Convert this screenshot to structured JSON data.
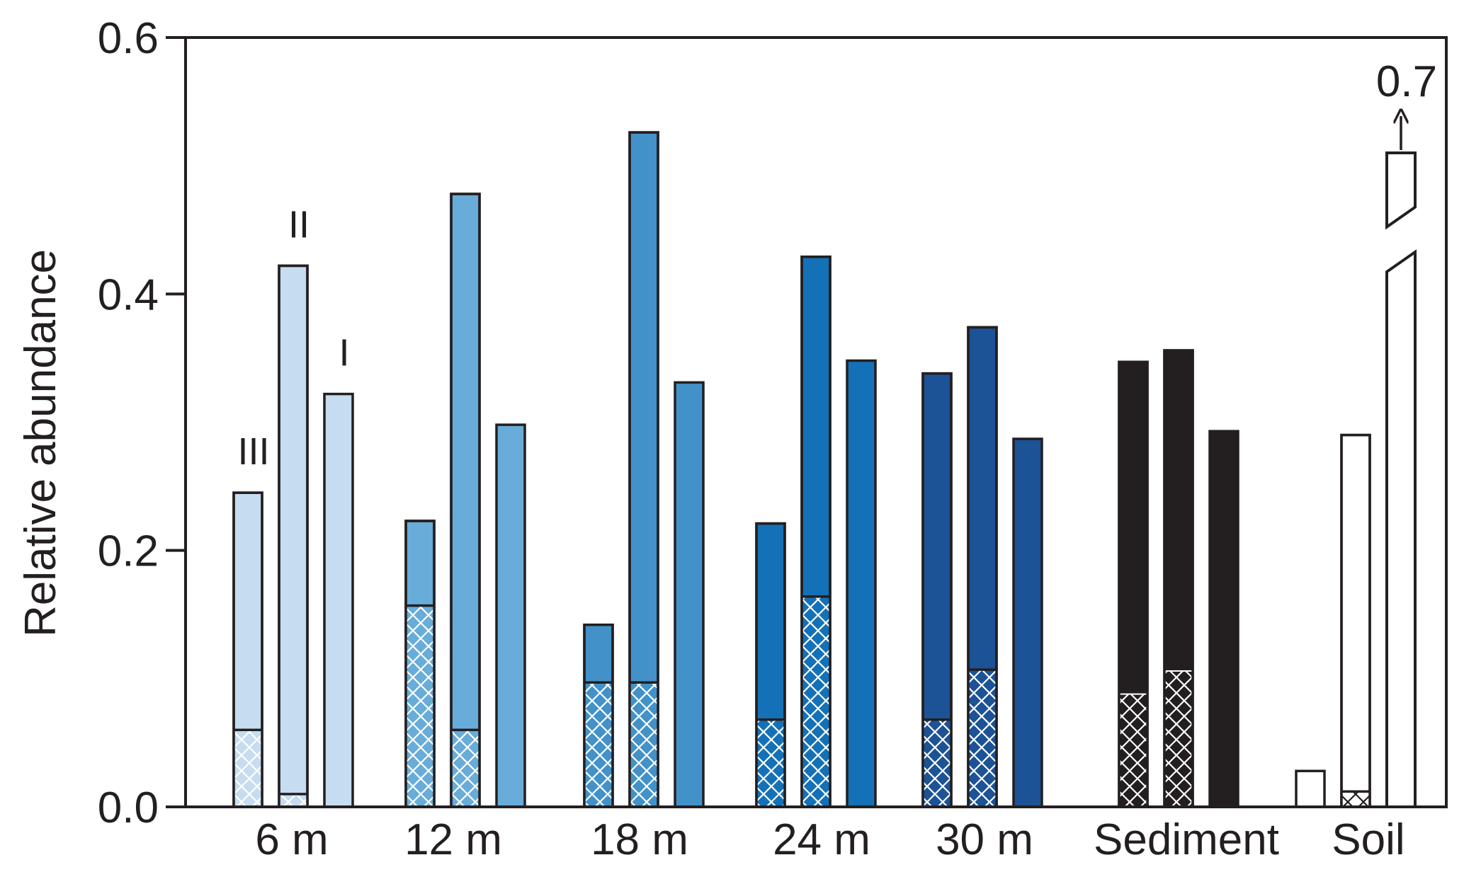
{
  "chart_data": {
    "type": "bar",
    "ylabel": "Relative abundance",
    "xlabel": "",
    "title": "",
    "ylim": [
      0,
      0.6
    ],
    "yticks": [
      {
        "value": 0.0,
        "label": "0.0"
      },
      {
        "value": 0.2,
        "label": "0.2"
      },
      {
        "value": 0.4,
        "label": "0.4"
      },
      {
        "value": 0.6,
        "label": "0.6"
      }
    ],
    "grid": false,
    "legend": "none",
    "bar_labels": [
      "III",
      "II",
      "I"
    ],
    "overflow_label": "0.7",
    "groups": [
      {
        "label": "6 m",
        "color": "#c6dcf0",
        "bars": [
          {
            "total": 0.245,
            "hatched": 0.06
          },
          {
            "total": 0.422,
            "hatched": 0.01
          },
          {
            "total": 0.322,
            "hatched": 0.0
          }
        ]
      },
      {
        "label": "12 m",
        "color": "#68acd9",
        "bars": [
          {
            "total": 0.223,
            "hatched": 0.157
          },
          {
            "total": 0.478,
            "hatched": 0.06
          },
          {
            "total": 0.298,
            "hatched": 0.0
          }
        ]
      },
      {
        "label": "18 m",
        "color": "#4292c9",
        "bars": [
          {
            "total": 0.142,
            "hatched": 0.097
          },
          {
            "total": 0.526,
            "hatched": 0.097
          },
          {
            "total": 0.331,
            "hatched": 0.0
          }
        ]
      },
      {
        "label": "24 m",
        "color": "#1571b7",
        "bars": [
          {
            "total": 0.221,
            "hatched": 0.068
          },
          {
            "total": 0.429,
            "hatched": 0.164
          },
          {
            "total": 0.348,
            "hatched": 0.0
          }
        ]
      },
      {
        "label": "30 m",
        "color": "#1c5296",
        "bars": [
          {
            "total": 0.338,
            "hatched": 0.068
          },
          {
            "total": 0.374,
            "hatched": 0.107
          },
          {
            "total": 0.287,
            "hatched": 0.0
          }
        ]
      },
      {
        "label": "Sediment",
        "color": "#231f20",
        "bars": [
          {
            "total": 0.347,
            "hatched": 0.088
          },
          {
            "total": 0.356,
            "hatched": 0.106
          },
          {
            "total": 0.293,
            "hatched": 0.0
          }
        ]
      },
      {
        "label": "Soil",
        "color": "#ffffff",
        "bars": [
          {
            "total": 0.028,
            "hatched": 0.0
          },
          {
            "total": 0.29,
            "hatched": 0.012
          },
          {
            "total": 0.7,
            "hatched": 0.0,
            "broken": true
          }
        ]
      }
    ]
  }
}
